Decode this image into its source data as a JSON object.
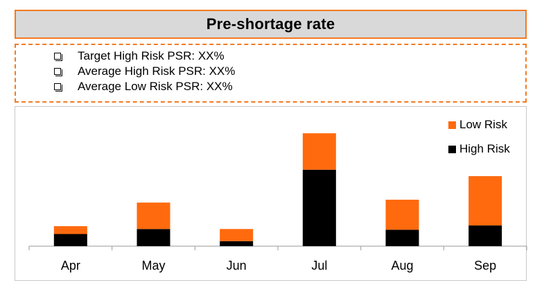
{
  "title": "Pre-shortage rate",
  "notes": [
    "Target High Risk PSR: XX%",
    "Average High Risk PSR:  XX%",
    "Average Low Risk PSR: XX%"
  ],
  "colors": {
    "low_risk": "#ff6a0e",
    "high_risk": "#000000",
    "accent": "#f47a20",
    "header_bg": "#d9d9d9"
  },
  "chart_data": {
    "type": "bar",
    "stacked": true,
    "categories": [
      "Apr",
      "May",
      "Jun",
      "Jul",
      "Aug",
      "Sep"
    ],
    "series": [
      {
        "name": "High Risk",
        "color": "#000000",
        "values": [
          17,
          24,
          7,
          107,
          23,
          29
        ]
      },
      {
        "name": "Low Risk",
        "color": "#ff6a0e",
        "values": [
          11,
          37,
          17,
          51,
          42,
          69
        ]
      }
    ],
    "ylim": [
      0,
      165
    ],
    "grid": false,
    "legend": "top-right"
  }
}
